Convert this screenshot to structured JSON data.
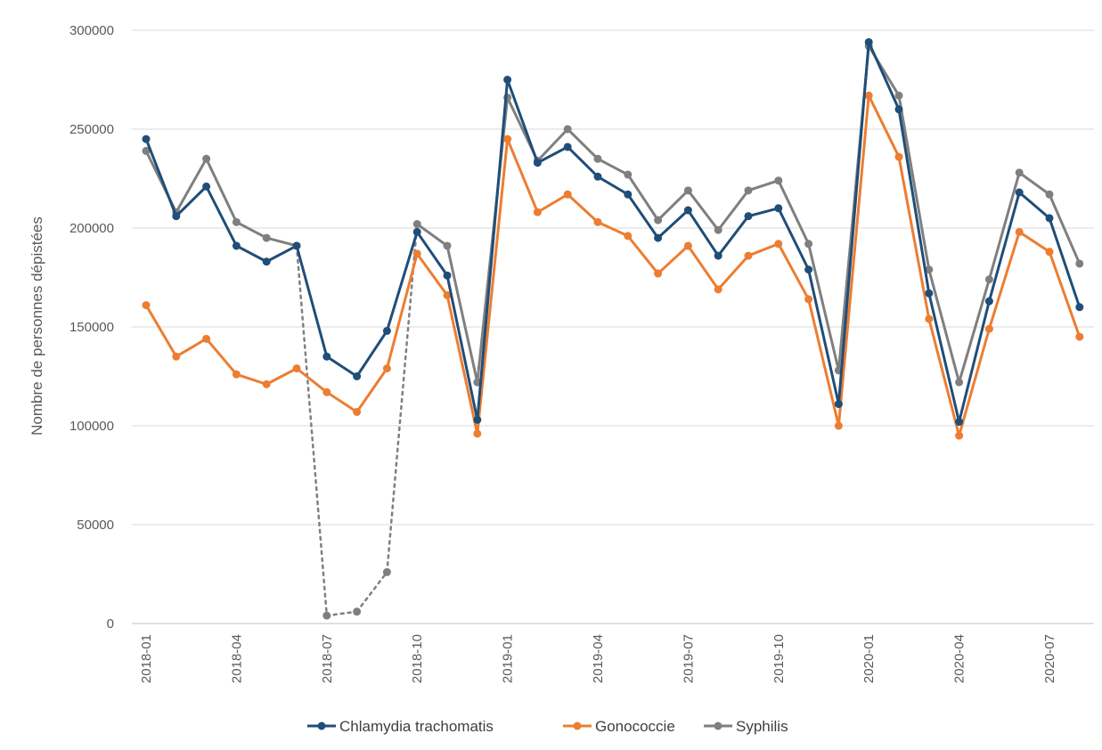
{
  "chart_data": {
    "type": "line",
    "ylabel": "Nombre de personnes dépistées",
    "ylim": [
      0,
      300000
    ],
    "yticks": [
      0,
      50000,
      100000,
      150000,
      200000,
      250000,
      300000
    ],
    "ytick_labels": [
      "0",
      "50000",
      "100000",
      "150000",
      "200000",
      "250000",
      "300000"
    ],
    "x": [
      "2018-01",
      "2018-02",
      "2018-03",
      "2018-04",
      "2018-05",
      "2018-06",
      "2018-07",
      "2018-08",
      "2018-09",
      "2018-10",
      "2018-11",
      "2018-12",
      "2019-01",
      "2019-02",
      "2019-03",
      "2019-04",
      "2019-05",
      "2019-06",
      "2019-07",
      "2019-08",
      "2019-09",
      "2019-10",
      "2019-11",
      "2019-12",
      "2020-01",
      "2020-02",
      "2020-03",
      "2020-04",
      "2020-05",
      "2020-06",
      "2020-07",
      "2020-08"
    ],
    "xtick_labels": [
      "2018-01",
      "2018-04",
      "2018-07",
      "2018-10",
      "2019-01",
      "2019-04",
      "2019-07",
      "2019-10",
      "2020-01",
      "2020-04",
      "2020-07"
    ],
    "grid": "horizontal",
    "legend_position": "bottom",
    "series": [
      {
        "name": "Chlamydia trachomatis",
        "color": "#1f4e79",
        "values": [
          245000,
          206000,
          221000,
          191000,
          183000,
          191000,
          135000,
          125000,
          148000,
          198000,
          176000,
          103000,
          275000,
          233000,
          241000,
          226000,
          217000,
          195000,
          209000,
          186000,
          206000,
          210000,
          179000,
          111000,
          294000,
          260000,
          167000,
          102000,
          163000,
          218000,
          205000,
          160000
        ]
      },
      {
        "name": "Gonococcie",
        "color": "#ed7d31",
        "values": [
          161000,
          135000,
          144000,
          126000,
          121000,
          129000,
          117000,
          107000,
          129000,
          187000,
          166000,
          96000,
          245000,
          208000,
          217000,
          203000,
          196000,
          177000,
          191000,
          169000,
          186000,
          192000,
          164000,
          100000,
          267000,
          236000,
          154000,
          95000,
          149000,
          198000,
          188000,
          145000
        ]
      },
      {
        "name": "Syphilis",
        "color": "#7f7f7f",
        "values": [
          239000,
          208000,
          235000,
          203000,
          195000,
          191000,
          4000,
          6000,
          26000,
          202000,
          191000,
          122000,
          266000,
          234000,
          250000,
          235000,
          227000,
          204000,
          219000,
          199000,
          219000,
          224000,
          192000,
          128000,
          292000,
          267000,
          179000,
          122000,
          174000,
          228000,
          217000,
          182000
        ],
        "dotted_segment": [
          "2018-06",
          "2018-10"
        ]
      }
    ]
  }
}
